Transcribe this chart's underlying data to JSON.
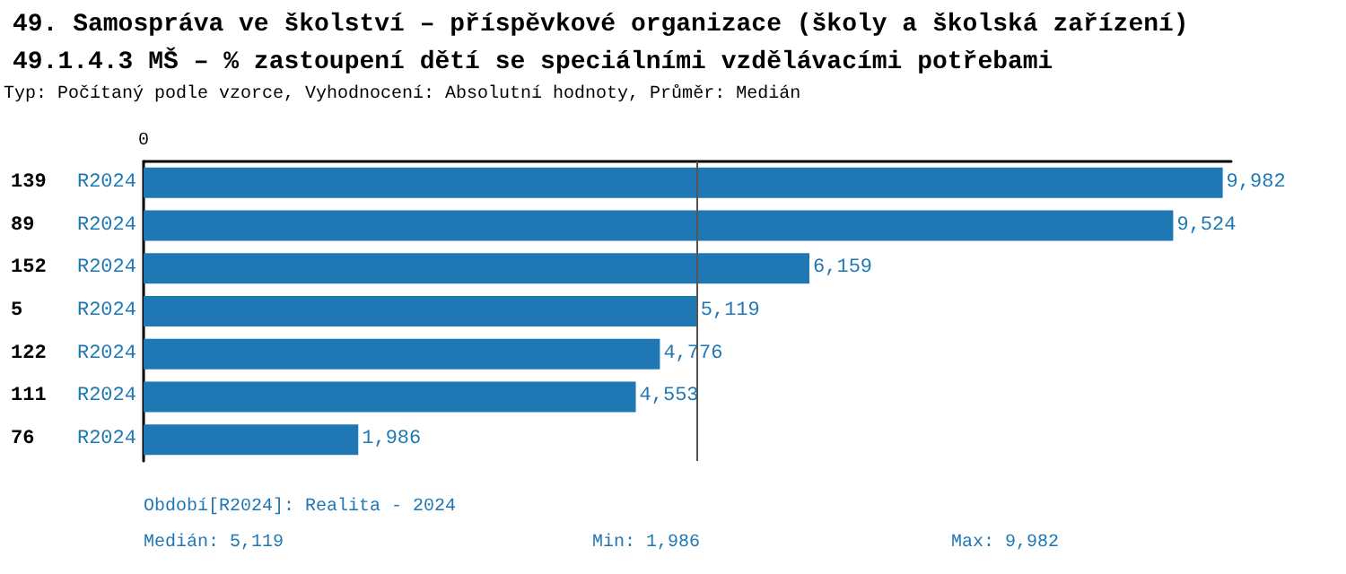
{
  "chart_data": {
    "type": "bar",
    "orientation": "horizontal",
    "title": "49. Samospráva ve školství – příspěvkové organizace (školy a školská zařízení)",
    "subtitle": "49.1.4.3 MŠ – % zastoupení dětí se speciálními vzdělávacími potřebami",
    "annotations": [
      "Typ: Počítaný podle vzorce, Vyhodnocení: Absolutní hodnoty, Průměr: Medián",
      "Období[R2024]: Realita - 2024",
      "Medián: 5,119",
      "Min: 1,986",
      "Max: 9,982",
      "0"
    ],
    "categories": [
      "139",
      "89",
      "152",
      "5",
      "122",
      "111",
      "76"
    ],
    "series": [
      {
        "name": "R2024",
        "color": "#1f77b4",
        "values": [
          9982,
          9524,
          6159,
          5119,
          4776,
          4553,
          1986
        ],
        "value_labels": [
          "9,982",
          "9,524",
          "6,159",
          "5,119",
          "4,776",
          "4,553",
          "1,986"
        ]
      }
    ],
    "xlim": [
      0,
      10060
    ],
    "ref_lines": [
      {
        "axis": "x",
        "value": 5119,
        "color": "#555555"
      }
    ]
  }
}
